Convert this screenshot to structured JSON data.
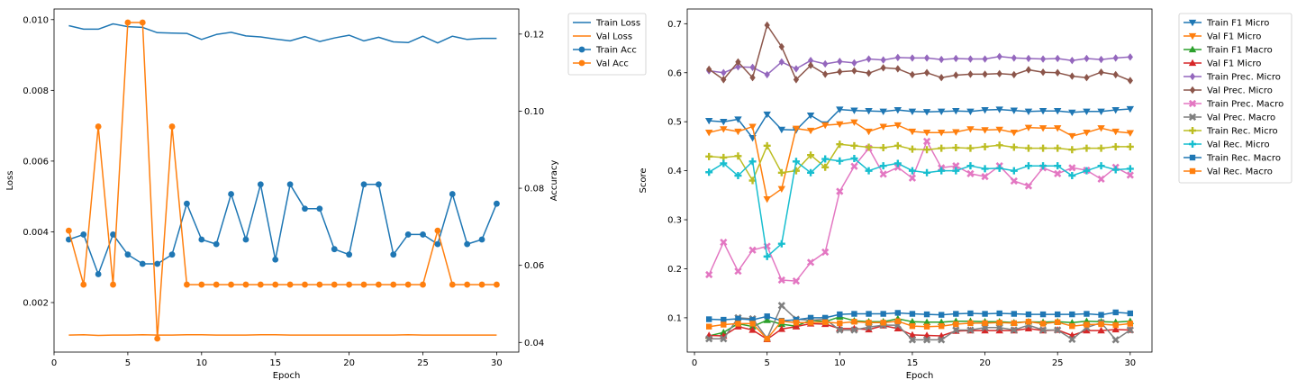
{
  "chart_data": [
    {
      "type": "line",
      "xlabel": "Epoch",
      "ylabel": "Loss",
      "ylabel_right": "Accuracy",
      "xlim": [
        0,
        31.5
      ],
      "ylim": [
        0.0006,
        0.0103
      ],
      "ylim_right": [
        0.0375,
        0.1265
      ],
      "xticks": [
        0,
        5,
        10,
        15,
        20,
        25,
        30
      ],
      "yticks": [
        0.002,
        0.004,
        0.006,
        0.008,
        0.01
      ],
      "yticks_labels": [
        "0.002",
        "0.004",
        "0.006",
        "0.008",
        "0.010"
      ],
      "yticks_right": [
        0.04,
        0.06,
        0.08,
        0.1,
        0.12
      ],
      "yticks_right_labels": [
        "0.04",
        "0.06",
        "0.08",
        "0.10",
        "0.12"
      ],
      "grid": false,
      "legend_position": "outside-top-right",
      "x": [
        1,
        2,
        3,
        4,
        5,
        6,
        7,
        8,
        9,
        10,
        11,
        12,
        13,
        14,
        15,
        16,
        17,
        18,
        19,
        20,
        21,
        22,
        23,
        24,
        25,
        26,
        27,
        28,
        29,
        30
      ],
      "series": [
        {
          "name": "Train Loss",
          "axis": "left",
          "color": "#1f77b4",
          "marker": "none",
          "values": [
            0.00983,
            0.00973,
            0.00973,
            0.00988,
            0.0098,
            0.00978,
            0.00963,
            0.00962,
            0.00961,
            0.00944,
            0.00958,
            0.00964,
            0.00954,
            0.00951,
            0.00945,
            0.0094,
            0.00952,
            0.00938,
            0.00948,
            0.00956,
            0.0094,
            0.0095,
            0.00937,
            0.00935,
            0.00953,
            0.00934,
            0.00953,
            0.00944,
            0.00947,
            0.00947
          ]
        },
        {
          "name": "Val Loss",
          "axis": "left",
          "color": "#ff7f0e",
          "marker": "none",
          "values": [
            0.00108,
            0.00109,
            0.00107,
            0.00108,
            0.00108,
            0.00109,
            0.00108,
            0.00108,
            0.00109,
            0.00109,
            0.00108,
            0.00108,
            0.00108,
            0.00109,
            0.00109,
            0.00108,
            0.00108,
            0.00108,
            0.00108,
            0.00108,
            0.00108,
            0.00108,
            0.00108,
            0.00109,
            0.00108,
            0.00108,
            0.00108,
            0.00108,
            0.00108,
            0.00108
          ]
        },
        {
          "name": "Train Acc",
          "axis": "right",
          "color": "#1f77b4",
          "marker": "circle",
          "values": [
            0.0667,
            0.068,
            0.0577,
            0.068,
            0.0628,
            0.0604,
            0.0604,
            0.0628,
            0.076,
            0.0667,
            0.0655,
            0.0785,
            0.0667,
            0.081,
            0.0615,
            0.081,
            0.0747,
            0.0747,
            0.0642,
            0.0628,
            0.081,
            0.081,
            0.0628,
            0.068,
            0.068,
            0.0655,
            0.0785,
            0.0655,
            0.0667,
            0.076
          ]
        },
        {
          "name": "Val Acc",
          "axis": "right",
          "color": "#ff7f0e",
          "marker": "circle",
          "values": [
            0.069,
            0.055,
            0.096,
            0.055,
            0.123,
            0.123,
            0.041,
            0.096,
            0.055,
            0.055,
            0.055,
            0.055,
            0.055,
            0.055,
            0.055,
            0.055,
            0.055,
            0.055,
            0.055,
            0.055,
            0.055,
            0.055,
            0.055,
            0.055,
            0.055,
            0.069,
            0.055,
            0.055,
            0.055,
            0.055
          ]
        }
      ]
    },
    {
      "type": "line",
      "xlabel": "Epoch",
      "ylabel": "Score",
      "xlim": [
        -0.5,
        31.5
      ],
      "ylim": [
        0.03,
        0.73
      ],
      "xticks": [
        0,
        5,
        10,
        15,
        20,
        25,
        30
      ],
      "yticks": [
        0.1,
        0.2,
        0.3,
        0.4,
        0.5,
        0.6,
        0.7
      ],
      "yticks_labels": [
        "0.1",
        "0.2",
        "0.3",
        "0.4",
        "0.5",
        "0.6",
        "0.7"
      ],
      "grid": false,
      "legend_position": "outside-top-right",
      "x": [
        1,
        2,
        3,
        4,
        5,
        6,
        7,
        8,
        9,
        10,
        11,
        12,
        13,
        14,
        15,
        16,
        17,
        18,
        19,
        20,
        21,
        22,
        23,
        24,
        25,
        26,
        27,
        28,
        29,
        30
      ],
      "series": [
        {
          "name": "Train F1 Micro",
          "color": "#1f77b4",
          "marker": "triangle-down",
          "values": [
            0.502,
            0.5,
            0.505,
            0.467,
            0.515,
            0.484,
            0.483,
            0.513,
            0.495,
            0.525,
            0.523,
            0.522,
            0.521,
            0.524,
            0.521,
            0.52,
            0.521,
            0.522,
            0.521,
            0.524,
            0.525,
            0.523,
            0.521,
            0.522,
            0.522,
            0.519,
            0.521,
            0.521,
            0.524,
            0.526
          ]
        },
        {
          "name": "Val F1 Micro",
          "color": "#ff7f0e",
          "marker": "triangle-down",
          "values": [
            0.478,
            0.485,
            0.48,
            0.49,
            0.342,
            0.363,
            0.486,
            0.482,
            0.493,
            0.495,
            0.499,
            0.48,
            0.49,
            0.493,
            0.48,
            0.478,
            0.478,
            0.479,
            0.485,
            0.483,
            0.484,
            0.478,
            0.488,
            0.487,
            0.487,
            0.471,
            0.478,
            0.487,
            0.48,
            0.477
          ]
        },
        {
          "name": "Train F1 Macro",
          "color": "#2ca02c",
          "marker": "triangle-up",
          "values": [
            0.063,
            0.07,
            0.088,
            0.082,
            0.095,
            0.087,
            0.083,
            0.095,
            0.092,
            0.102,
            0.094,
            0.092,
            0.092,
            0.098,
            0.092,
            0.091,
            0.091,
            0.093,
            0.093,
            0.092,
            0.092,
            0.09,
            0.092,
            0.091,
            0.092,
            0.09,
            0.093,
            0.092,
            0.091,
            0.093
          ]
        },
        {
          "name": "Val F1 Micro",
          "color": "#d62728",
          "marker": "triangle-up",
          "values": [
            0.064,
            0.063,
            0.082,
            0.075,
            0.056,
            0.077,
            0.082,
            0.088,
            0.087,
            0.078,
            0.078,
            0.076,
            0.084,
            0.078,
            0.065,
            0.064,
            0.063,
            0.073,
            0.074,
            0.074,
            0.074,
            0.074,
            0.078,
            0.074,
            0.075,
            0.064,
            0.074,
            0.074,
            0.076,
            0.075
          ]
        },
        {
          "name": "Train Prec. Micro",
          "color": "#9467bd",
          "marker": "diamond",
          "values": [
            0.604,
            0.6,
            0.612,
            0.611,
            0.596,
            0.622,
            0.608,
            0.625,
            0.618,
            0.623,
            0.62,
            0.628,
            0.626,
            0.631,
            0.63,
            0.63,
            0.627,
            0.629,
            0.628,
            0.628,
            0.633,
            0.63,
            0.629,
            0.628,
            0.629,
            0.625,
            0.629,
            0.627,
            0.63,
            0.632
          ]
        },
        {
          "name": "Val Prec. Micro",
          "color": "#8c564b",
          "marker": "diamond",
          "values": [
            0.607,
            0.586,
            0.622,
            0.59,
            0.697,
            0.653,
            0.586,
            0.615,
            0.597,
            0.602,
            0.604,
            0.599,
            0.61,
            0.608,
            0.596,
            0.6,
            0.59,
            0.595,
            0.597,
            0.597,
            0.598,
            0.596,
            0.606,
            0.601,
            0.6,
            0.593,
            0.59,
            0.601,
            0.596,
            0.584
          ]
        },
        {
          "name": "Train Prec. Macro",
          "color": "#e377c2",
          "marker": "x-thick",
          "values": [
            0.188,
            0.254,
            0.195,
            0.238,
            0.246,
            0.177,
            0.175,
            0.213,
            0.234,
            0.358,
            0.409,
            0.446,
            0.393,
            0.407,
            0.385,
            0.46,
            0.406,
            0.41,
            0.394,
            0.388,
            0.41,
            0.379,
            0.369,
            0.406,
            0.394,
            0.406,
            0.401,
            0.383,
            0.407,
            0.391
          ]
        },
        {
          "name": "Val Prec. Macro",
          "color": "#7f7f7f",
          "marker": "x-thick",
          "values": [
            0.057,
            0.057,
            0.1,
            0.098,
            0.058,
            0.125,
            0.097,
            0.095,
            0.097,
            0.075,
            0.075,
            0.081,
            0.085,
            0.085,
            0.055,
            0.055,
            0.055,
            0.075,
            0.075,
            0.08,
            0.08,
            0.075,
            0.085,
            0.075,
            0.075,
            0.056,
            0.08,
            0.09,
            0.055,
            0.075
          ]
        },
        {
          "name": "Train Rec. Micro",
          "color": "#bcbd22",
          "marker": "plus",
          "values": [
            0.429,
            0.427,
            0.43,
            0.38,
            0.451,
            0.396,
            0.4,
            0.432,
            0.407,
            0.454,
            0.451,
            0.448,
            0.447,
            0.451,
            0.444,
            0.443,
            0.446,
            0.447,
            0.446,
            0.449,
            0.452,
            0.448,
            0.446,
            0.446,
            0.446,
            0.443,
            0.446,
            0.446,
            0.449,
            0.449
          ]
        },
        {
          "name": "Val Rec. Micro",
          "color": "#17becf",
          "marker": "plus",
          "values": [
            0.397,
            0.415,
            0.39,
            0.419,
            0.225,
            0.251,
            0.419,
            0.396,
            0.424,
            0.42,
            0.425,
            0.4,
            0.41,
            0.415,
            0.4,
            0.396,
            0.4,
            0.4,
            0.41,
            0.404,
            0.405,
            0.4,
            0.41,
            0.41,
            0.41,
            0.39,
            0.4,
            0.41,
            0.402,
            0.404
          ]
        },
        {
          "name": "Train Rec. Macro",
          "color": "#1f77b4",
          "marker": "square",
          "values": [
            0.097,
            0.096,
            0.098,
            0.096,
            0.103,
            0.094,
            0.096,
            0.1,
            0.1,
            0.107,
            0.108,
            0.108,
            0.108,
            0.11,
            0.108,
            0.107,
            0.106,
            0.108,
            0.109,
            0.108,
            0.109,
            0.108,
            0.107,
            0.107,
            0.107,
            0.107,
            0.108,
            0.106,
            0.111,
            0.109
          ]
        },
        {
          "name": "Val Rec. Macro",
          "color": "#ff7f0e",
          "marker": "square",
          "values": [
            0.082,
            0.086,
            0.088,
            0.088,
            0.057,
            0.093,
            0.09,
            0.09,
            0.091,
            0.089,
            0.092,
            0.09,
            0.09,
            0.093,
            0.083,
            0.082,
            0.083,
            0.087,
            0.089,
            0.089,
            0.09,
            0.089,
            0.092,
            0.088,
            0.091,
            0.083,
            0.086,
            0.087,
            0.085,
            0.088
          ]
        }
      ]
    }
  ]
}
